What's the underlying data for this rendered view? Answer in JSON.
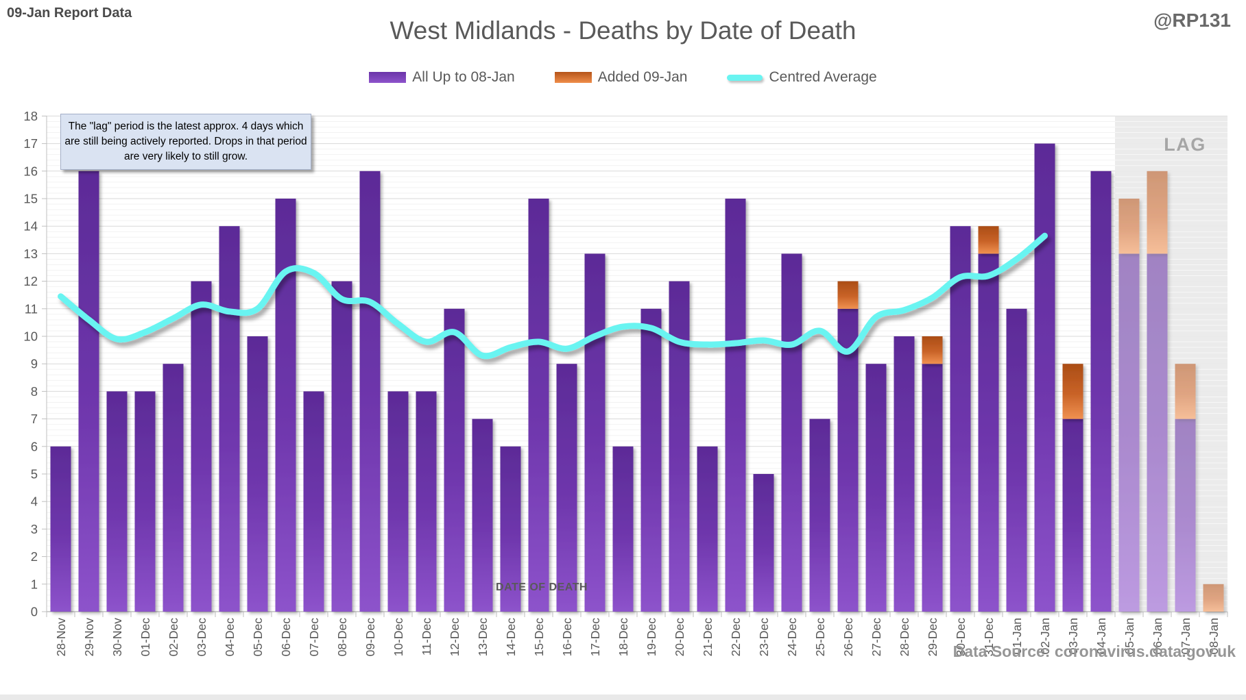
{
  "header": {
    "report_label": "09-Jan Report Data",
    "handle": "@RP131"
  },
  "title": "West Midlands - Deaths by Date of Death",
  "legend": [
    {
      "label": "All Up to 08-Jan",
      "swatch": "purple"
    },
    {
      "label": "Added 09-Jan",
      "swatch": "orange"
    },
    {
      "label": "Centred Average",
      "swatch": "cyan"
    }
  ],
  "annotation_text": "The \"lag\" period is the latest approx. 4 days which are still being actively reported. Drops in that period are very likely to still grow.",
  "x_axis_title": "DATE OF DEATH",
  "data_source": "Data Source: coronavirus.data.gov.uk",
  "lag_label": "LAG",
  "colors": {
    "purple_top": "#5c2b97",
    "purple_mid": "#6f37ad",
    "purple_bottom": "#8d53cb",
    "orange_top": "#ab4d15",
    "orange_mid": "#c96328",
    "orange_bottom": "#f09150",
    "cyan": "#69f4f1",
    "axis_text": "#595959",
    "grid_major": "#d9d9d9",
    "grid_minor": "#f2f2f2",
    "axis_line": "#bfbfbf",
    "lag_bg": "#dcdcdc",
    "lag_text": "#a6a6a6"
  },
  "chart_data": {
    "type": "bar",
    "stacked": true,
    "title": "West Midlands - Deaths by Date of Death",
    "xlabel": "DATE OF DEATH",
    "ylabel": "",
    "ylim": [
      0,
      18
    ],
    "y_tick_step": 1,
    "grid": "major+minor",
    "legend_position": "top",
    "categories": [
      "28-Nov",
      "29-Nov",
      "30-Nov",
      "01-Dec",
      "02-Dec",
      "03-Dec",
      "04-Dec",
      "05-Dec",
      "06-Dec",
      "07-Dec",
      "08-Dec",
      "09-Dec",
      "10-Dec",
      "11-Dec",
      "12-Dec",
      "13-Dec",
      "14-Dec",
      "15-Dec",
      "16-Dec",
      "17-Dec",
      "18-Dec",
      "19-Dec",
      "20-Dec",
      "21-Dec",
      "22-Dec",
      "23-Dec",
      "24-Dec",
      "25-Dec",
      "26-Dec",
      "27-Dec",
      "28-Dec",
      "29-Dec",
      "30-Dec",
      "31-Dec",
      "01-Jan",
      "02-Jan",
      "03-Jan",
      "04-Jan",
      "05-Jan",
      "06-Jan",
      "07-Jan",
      "08-Jan"
    ],
    "series": [
      {
        "name": "All Up to 08-Jan",
        "type": "bar",
        "values": [
          6,
          16,
          8,
          8,
          9,
          12,
          14,
          10,
          15,
          8,
          12,
          16,
          8,
          8,
          11,
          7,
          6,
          15,
          9,
          13,
          6,
          11,
          12,
          6,
          15,
          5,
          13,
          7,
          11,
          9,
          10,
          9,
          14,
          13,
          11,
          17,
          7,
          16,
          13,
          13,
          7,
          0
        ]
      },
      {
        "name": "Added 09-Jan",
        "type": "bar",
        "values": [
          0,
          0,
          0,
          0,
          0,
          0,
          0,
          0,
          0,
          0,
          0,
          0,
          0,
          0,
          0,
          0,
          0,
          0,
          0,
          0,
          0,
          0,
          0,
          0,
          0,
          0,
          0,
          0,
          1,
          0,
          0,
          1,
          0,
          1,
          0,
          0,
          2,
          0,
          2,
          3,
          2,
          1
        ]
      },
      {
        "name": "Centred Average",
        "type": "line",
        "values": [
          11.45,
          10.6,
          9.9,
          10.15,
          10.65,
          11.15,
          10.9,
          11.0,
          12.35,
          12.3,
          11.35,
          11.25,
          10.45,
          9.8,
          10.15,
          9.3,
          9.6,
          9.8,
          9.55,
          10.0,
          10.35,
          10.3,
          9.8,
          9.7,
          9.75,
          9.85,
          9.7,
          10.2,
          9.45,
          10.7,
          10.95,
          11.4,
          12.15,
          12.2,
          12.8,
          13.65,
          null,
          null,
          null,
          null,
          null,
          null
        ]
      }
    ],
    "lag_region": {
      "label": "LAG",
      "categories": [
        "05-Jan",
        "06-Jan",
        "07-Jan",
        "08-Jan"
      ]
    }
  }
}
